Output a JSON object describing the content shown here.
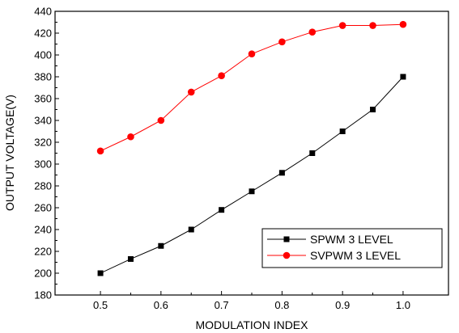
{
  "chart_data": {
    "type": "line",
    "title": "",
    "xlabel": "MODULATION INDEX",
    "ylabel": "OUTPUT VOLTAGE(V)",
    "xlim": [
      0.425,
      1.075
    ],
    "ylim": [
      180,
      440
    ],
    "xticks": [
      0.5,
      0.6,
      0.7,
      0.8,
      0.9,
      1.0
    ],
    "xtick_labels": [
      "0.5",
      "0.6",
      "0.7",
      "0.8",
      "0.9",
      "1.0"
    ],
    "yticks": [
      180,
      200,
      220,
      240,
      260,
      280,
      300,
      320,
      340,
      360,
      380,
      400,
      420,
      440
    ],
    "ytick_labels": [
      "180",
      "200",
      "220",
      "240",
      "260",
      "280",
      "300",
      "320",
      "340",
      "360",
      "380",
      "400",
      "420",
      "440"
    ],
    "grid": false,
    "legend_position": "lower-right",
    "x": [
      0.5,
      0.55,
      0.6,
      0.65,
      0.7,
      0.75,
      0.8,
      0.85,
      0.9,
      0.95,
      1.0
    ],
    "series": [
      {
        "name": "SPWM 3 LEVEL",
        "color": "#000000",
        "marker": "square",
        "values": [
          200,
          213,
          225,
          240,
          258,
          275,
          292,
          310,
          330,
          350,
          380
        ]
      },
      {
        "name": "SVPWM 3 LEVEL",
        "color": "#ff0000",
        "marker": "circle",
        "values": [
          312,
          325,
          340,
          366,
          381,
          401,
          412,
          421,
          427,
          427,
          428
        ]
      }
    ]
  }
}
